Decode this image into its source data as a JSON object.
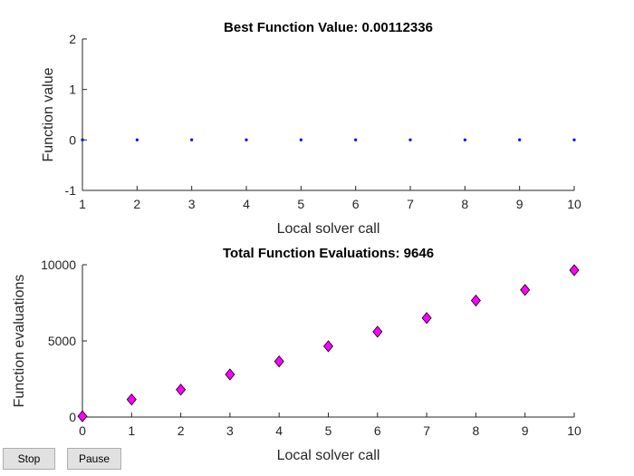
{
  "controls": {
    "stop_label": "Stop",
    "pause_label": "Pause"
  },
  "chart_data": [
    {
      "type": "scatter",
      "title": "Best Function Value: 0.00112336",
      "xlabel": "Local solver call",
      "ylabel": "Function value",
      "xlim": [
        1,
        10
      ],
      "ylim": [
        -1,
        2
      ],
      "xticks": [
        1,
        2,
        3,
        4,
        5,
        6,
        7,
        8,
        9,
        10
      ],
      "yticks": [
        -1,
        0,
        1,
        2
      ],
      "marker": "dot",
      "color": "#0000ff",
      "grid": false,
      "x": [
        1,
        2,
        3,
        4,
        5,
        6,
        7,
        8,
        9,
        10
      ],
      "y": [
        0.0011,
        0.0011,
        0.0011,
        0.0011,
        0.0011,
        0.0011,
        0.0011,
        0.0011,
        0.0011,
        0.0011
      ]
    },
    {
      "type": "scatter",
      "title": "Total Function Evaluations: 9646",
      "xlabel": "Local solver call",
      "ylabel": "Function evaluations",
      "xlim": [
        0,
        10
      ],
      "ylim": [
        0,
        10000
      ],
      "xticks": [
        0,
        1,
        2,
        3,
        4,
        5,
        6,
        7,
        8,
        9,
        10
      ],
      "yticks": [
        0,
        5000,
        10000
      ],
      "marker": "diamond",
      "color": "#ff00ff",
      "grid": false,
      "x": [
        0,
        1,
        2,
        3,
        4,
        5,
        6,
        7,
        8,
        9,
        10
      ],
      "y": [
        50,
        1150,
        1800,
        2800,
        3650,
        4650,
        5600,
        6500,
        7650,
        8350,
        9646
      ]
    }
  ]
}
